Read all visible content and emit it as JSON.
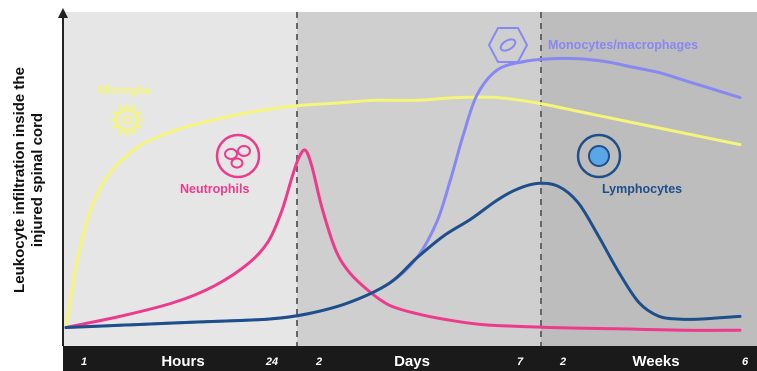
{
  "colors": {
    "microglia": "#F5F57A",
    "neutrophils": "#EE3A8C",
    "monocytes": "#8888F2",
    "lymphocytes": "#1E4F8A",
    "phase_hours_bg": "#E6E6E6",
    "phase_days_bg": "#CFCFCF",
    "phase_weeks_bg": "#BDBDBD",
    "axis_bar": "#1A1A1A"
  },
  "chart_data": {
    "type": "line",
    "title": "",
    "ylabel_lines": [
      "Leukocyte infiltration inside the",
      "injured spinal cord"
    ],
    "time_axis": {
      "phases": [
        {
          "name": "Hours",
          "start_label": "1",
          "end_label": "24"
        },
        {
          "name": "Days",
          "start_label": "2",
          "end_label": "7"
        },
        {
          "name": "Weeks",
          "start_label": "2",
          "end_label": "6"
        }
      ]
    },
    "series": [
      {
        "name": "Microglia",
        "icon": "microglia-icon",
        "points": [
          [
            0,
            2
          ],
          [
            2,
            30
          ],
          [
            5,
            52
          ],
          [
            10,
            66
          ],
          [
            16,
            73
          ],
          [
            22,
            77
          ],
          [
            28,
            80
          ],
          [
            34,
            82
          ],
          [
            40,
            83
          ],
          [
            46,
            84
          ],
          [
            52,
            84
          ],
          [
            58,
            85
          ],
          [
            64,
            85
          ],
          [
            70,
            83
          ],
          [
            76,
            80
          ],
          [
            82,
            77
          ],
          [
            88,
            74
          ],
          [
            94,
            71
          ],
          [
            100,
            68
          ]
        ]
      },
      {
        "name": "Neutrophils",
        "icon": "neutrophils-icon",
        "points": [
          [
            0,
            2
          ],
          [
            8,
            6
          ],
          [
            16,
            11
          ],
          [
            22,
            17
          ],
          [
            27,
            25
          ],
          [
            30,
            33
          ],
          [
            32,
            44
          ],
          [
            33.5,
            56
          ],
          [
            34.5,
            63
          ],
          [
            35.5,
            66
          ],
          [
            36.5,
            60
          ],
          [
            38,
            45
          ],
          [
            40,
            30
          ],
          [
            42,
            22
          ],
          [
            45,
            15
          ],
          [
            48,
            10
          ],
          [
            52,
            7
          ],
          [
            56,
            5
          ],
          [
            62,
            3
          ],
          [
            72,
            2
          ],
          [
            82,
            1.5
          ],
          [
            92,
            1
          ],
          [
            100,
            1
          ]
        ]
      },
      {
        "name": "Monocytes/macrophages",
        "icon": "monocytes-icon",
        "points": [
          [
            0,
            2
          ],
          [
            10,
            3
          ],
          [
            20,
            4
          ],
          [
            30,
            5
          ],
          [
            36,
            7
          ],
          [
            42,
            11
          ],
          [
            48,
            18
          ],
          [
            52,
            27
          ],
          [
            55,
            40
          ],
          [
            57,
            55
          ],
          [
            59,
            72
          ],
          [
            61,
            86
          ],
          [
            64,
            95
          ],
          [
            68,
            98
          ],
          [
            72,
            99
          ],
          [
            76,
            99
          ],
          [
            80,
            98
          ],
          [
            84,
            96
          ],
          [
            88,
            94
          ],
          [
            92,
            91
          ],
          [
            96,
            88
          ],
          [
            100,
            85
          ]
        ]
      },
      {
        "name": "Lymphocytes",
        "icon": "lymphocytes-icon",
        "points": [
          [
            0,
            2
          ],
          [
            10,
            3
          ],
          [
            20,
            4
          ],
          [
            30,
            5
          ],
          [
            36,
            7
          ],
          [
            42,
            11
          ],
          [
            48,
            18
          ],
          [
            52,
            27
          ],
          [
            56,
            35
          ],
          [
            60,
            41
          ],
          [
            64,
            48
          ],
          [
            67,
            52
          ],
          [
            70,
            54
          ],
          [
            73,
            53
          ],
          [
            76,
            47
          ],
          [
            79,
            35
          ],
          [
            82,
            22
          ],
          [
            85,
            11
          ],
          [
            88,
            6
          ],
          [
            91,
            5
          ],
          [
            94,
            5
          ],
          [
            97,
            5.5
          ],
          [
            100,
            6
          ]
        ]
      }
    ],
    "xlim": [
      0,
      100
    ],
    "ylim": [
      0,
      100
    ],
    "grid": false,
    "legend": "inline labels"
  }
}
